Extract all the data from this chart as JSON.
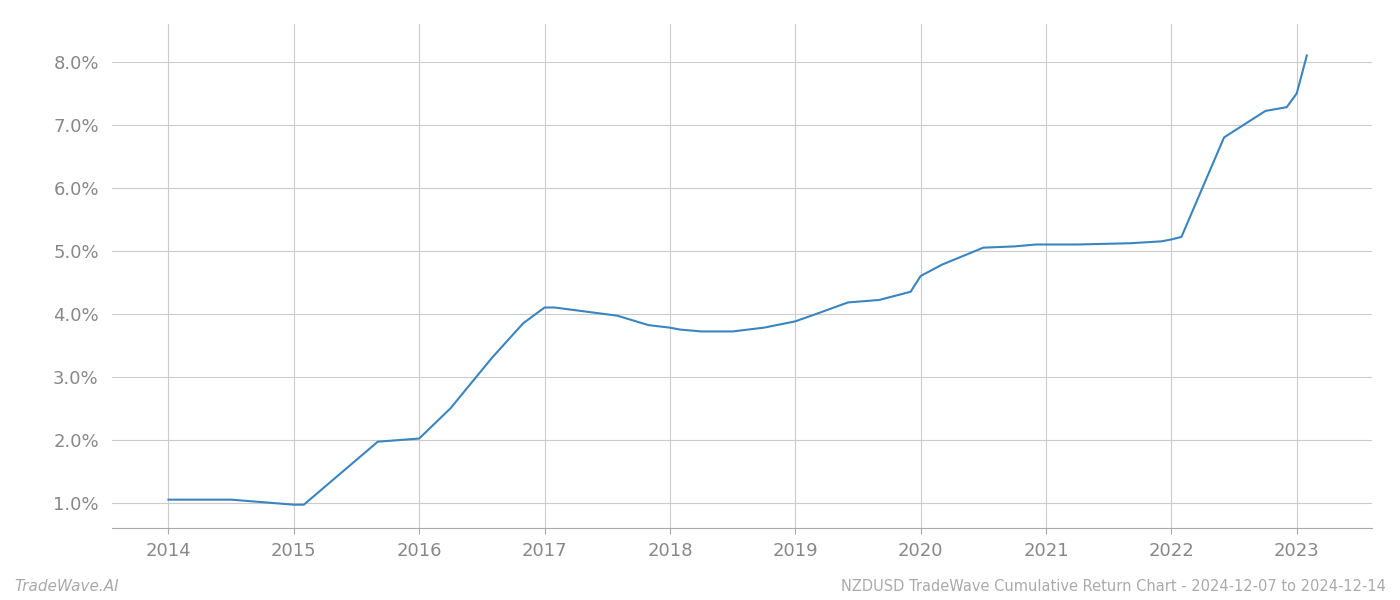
{
  "title": "NZDUSD TradeWave Cumulative Return Chart - 2024-12-07 to 2024-12-14",
  "watermark": "TradeWave.AI",
  "line_color": "#3a85c0",
  "background_color": "#ffffff",
  "grid_color": "#cccccc",
  "x_years": [
    2014,
    2015,
    2016,
    2017,
    2018,
    2019,
    2020,
    2021,
    2022,
    2023
  ],
  "x_values": [
    2014.0,
    2014.5,
    2015.0,
    2015.08,
    2015.67,
    2016.0,
    2016.25,
    2016.58,
    2016.83,
    2017.0,
    2017.08,
    2017.58,
    2017.83,
    2018.0,
    2018.08,
    2018.25,
    2018.5,
    2018.75,
    2019.0,
    2019.17,
    2019.42,
    2019.67,
    2019.92,
    2020.0,
    2020.17,
    2020.5,
    2020.75,
    2020.92,
    2021.0,
    2021.25,
    2021.67,
    2021.92,
    2022.0,
    2022.08,
    2022.42,
    2022.75,
    2022.92,
    2023.0,
    2023.08
  ],
  "y_values": [
    1.05,
    1.05,
    0.97,
    0.97,
    1.97,
    2.02,
    2.5,
    3.3,
    3.85,
    4.1,
    4.1,
    3.97,
    3.82,
    3.78,
    3.75,
    3.72,
    3.72,
    3.78,
    3.88,
    4.0,
    4.18,
    4.22,
    4.35,
    4.6,
    4.78,
    5.05,
    5.07,
    5.1,
    5.1,
    5.1,
    5.12,
    5.15,
    5.18,
    5.22,
    6.8,
    7.22,
    7.28,
    7.5,
    8.1
  ],
  "ylim": [
    0.6,
    8.6
  ],
  "yticks": [
    1.0,
    2.0,
    3.0,
    4.0,
    5.0,
    6.0,
    7.0,
    8.0
  ],
  "xlim": [
    2013.55,
    2023.6
  ],
  "line_width": 1.5,
  "title_fontsize": 10.5,
  "tick_fontsize": 13,
  "watermark_fontsize": 11
}
